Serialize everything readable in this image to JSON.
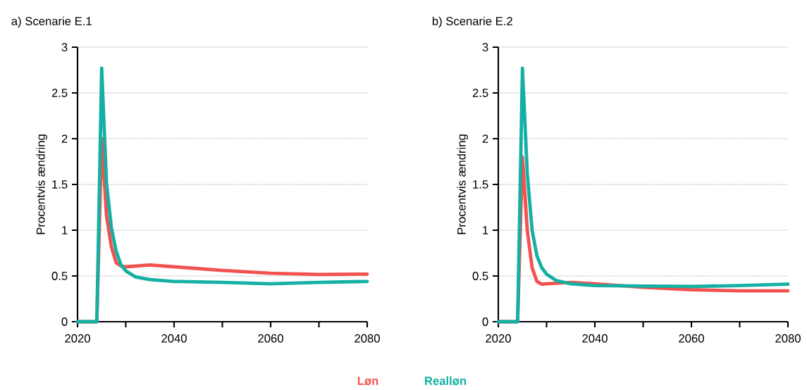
{
  "chart_data": [
    {
      "type": "line",
      "title": "a) Scenarie E.1",
      "ylabel": "Procentvis ændring",
      "xlim": [
        2020,
        2080
      ],
      "ylim": [
        0,
        3
      ],
      "xticks": [
        2020,
        {
          "value": 2030,
          "label": null
        },
        2040,
        {
          "value": 2050,
          "label": null
        },
        2060,
        {
          "value": 2070,
          "label": null
        },
        2080
      ],
      "yticks": [
        0,
        0.5,
        1,
        1.5,
        2,
        2.5,
        3
      ],
      "grid": "y",
      "legend": "bottom",
      "marker": "none",
      "line_style": "solid",
      "series": [
        {
          "name": "Løn",
          "color": "#f2524f",
          "x": [
            2020,
            2024,
            2025,
            2026,
            2027,
            2028,
            2029,
            2030,
            2035,
            2040,
            2050,
            2060,
            2070,
            2080
          ],
          "values": [
            0,
            0,
            2.0,
            1.16,
            0.82,
            0.645,
            0.61,
            0.6,
            0.62,
            0.6,
            0.56,
            0.53,
            0.517,
            0.52
          ]
        },
        {
          "name": "Realløn",
          "color": "#14b0a4",
          "x": [
            2020,
            2024,
            2025,
            2026,
            2027,
            2028,
            2029,
            2030,
            2032,
            2035,
            2040,
            2050,
            2060,
            2070,
            2080
          ],
          "values": [
            0,
            0,
            2.77,
            1.52,
            1.03,
            0.77,
            0.62,
            0.555,
            0.49,
            0.46,
            0.44,
            0.43,
            0.415,
            0.43,
            0.44
          ]
        }
      ]
    },
    {
      "type": "line",
      "title": "b) Scenarie E.2",
      "ylabel": "Procentvis ændring",
      "xlim": [
        2020,
        2080
      ],
      "ylim": [
        0,
        3
      ],
      "xticks": [
        2020,
        {
          "value": 2030,
          "label": null
        },
        2040,
        {
          "value": 2050,
          "label": null
        },
        2060,
        {
          "value": 2070,
          "label": null
        },
        2080
      ],
      "yticks": [
        0,
        0.5,
        1,
        1.5,
        2,
        2.5,
        3
      ],
      "grid": "y",
      "marker": "none",
      "line_style": "solid",
      "series": [
        {
          "color": "#f2524f",
          "x": [
            2020,
            2024,
            2025,
            2026,
            2027,
            2028,
            2029,
            2030,
            2035,
            2040,
            2050,
            2060,
            2070,
            2080
          ],
          "values": [
            0,
            0,
            1.8,
            1.0,
            0.59,
            0.44,
            0.41,
            0.415,
            0.43,
            0.415,
            0.376,
            0.35,
            0.338,
            0.338
          ]
        },
        {
          "color": "#14b0a4",
          "x": [
            2020,
            2024,
            2025,
            2026,
            2027,
            2028,
            2029,
            2030,
            2032,
            2035,
            2040,
            2050,
            2060,
            2070,
            2080
          ],
          "values": [
            0,
            0,
            2.77,
            1.62,
            1.0,
            0.72,
            0.59,
            0.52,
            0.45,
            0.415,
            0.395,
            0.39,
            0.385,
            0.395,
            0.41
          ]
        }
      ]
    }
  ]
}
